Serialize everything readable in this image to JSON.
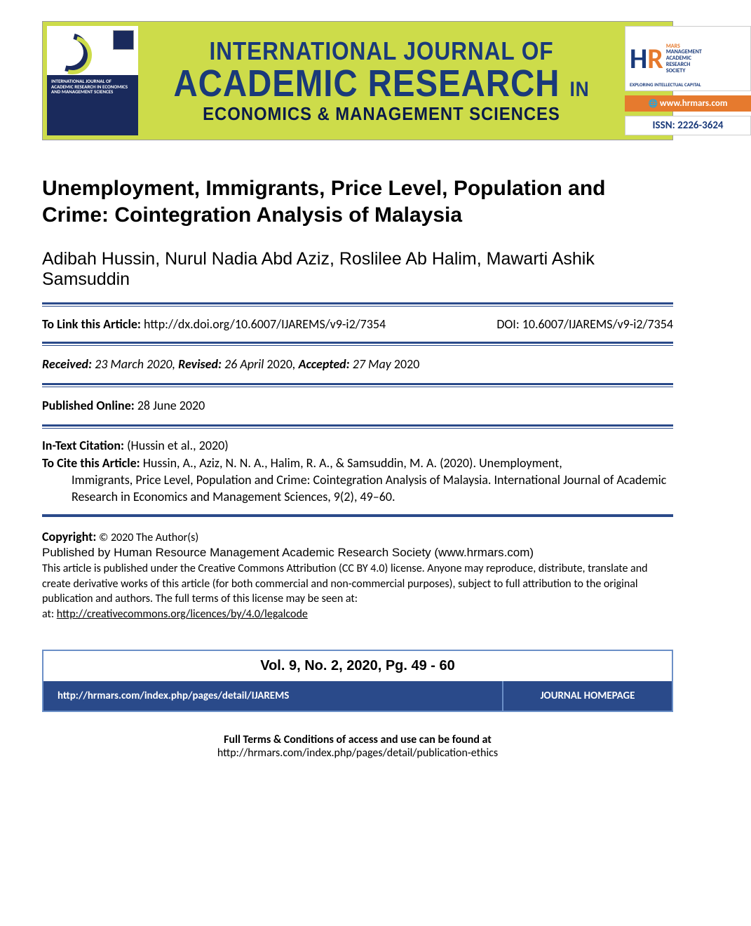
{
  "banner": {
    "journal_line1": "INTERNATIONAL JOURNAL OF",
    "journal_line2_a": "ACADEMIC RESEARCH",
    "journal_line2_b": "IN",
    "journal_line3": "ECONOMICS & MANAGEMENT SCIENCES",
    "cover_title": "INTERNATIONAL JOURNAL OF ACADEMIC RESEARCH IN ECONOMICS AND MANAGEMENT SCIENCES",
    "logo_text_line1": "MANAGEMENT",
    "logo_text_line2": "ACADEMIC",
    "logo_text_line3": "RESEARCH",
    "logo_text_line4": "SOCIETY",
    "logo_tagline": "EXPLORING INTELLECTUAL CAPITAL",
    "url": "www.hrmars.com",
    "issn": "ISSN: 2226-3624",
    "colors": {
      "banner_bg": "#cddc4a",
      "title_color": "#1a3a7a",
      "navy": "#0a1a4a",
      "orange": "#e67a2e",
      "bar_blue": "#2a4a8a",
      "border_blue": "#6b8fc7"
    }
  },
  "article": {
    "title": "Unemployment, Immigrants, Price Level, Population and Crime: Cointegration Analysis of Malaysia",
    "authors": "Adibah Hussin, Nurul Nadia Abd Aziz, Roslilee Ab Halim, Mawarti Ashik Samsuddin"
  },
  "doi": {
    "link_label": "To Link this Article:",
    "link_url": "http://dx.doi.org/10.6007/IJAREMS/v9-i2/7354",
    "doi_label": "DOI:",
    "doi_value": "10.6007/IJAREMS/v9-i2/7354"
  },
  "dates": {
    "received_label": "Received:",
    "received_value": "23 March 2020",
    "revised_label": "Revised:",
    "revised_value": "26 April",
    "revised_year": "2020",
    "accepted_label": "Accepted:",
    "accepted_value": "27 May",
    "accepted_year": "2020",
    "published_label": "Published Online:",
    "published_value": "28 June 2020"
  },
  "citation": {
    "intext_label": "In-Text Citation:",
    "intext_value": "(Hussin et al., 2020)",
    "cite_label": "To Cite this Article:",
    "cite_text_1": "Hussin, A., Aziz, N. N. A., Halim, R. A., & Samsuddin, M. A. (2020). Unemployment,",
    "cite_text_2": "Immigrants, Price Level, Population and Crime: Cointegration Analysis of Malaysia.",
    "cite_journal": "International Journal of Academic Research in Economics and Management Sciences",
    "cite_vol": ", 9(2), 49–60."
  },
  "copyright": {
    "label": "Copyright:",
    "holder": "© 2020 The Author(s)",
    "publisher": "Published by Human Resource Management Academic Research Society (www.hrmars.com)",
    "license_text": "This article is published under the Creative Commons Attribution (CC BY 4.0) license. Anyone may reproduce, distribute, translate and create derivative works of this article (for both commercial and non-commercial purposes), subject to full attribution to the original publication and authors. The full terms of this license may be seen at:",
    "license_url": "http://creativecommons.org/licences/by/4.0/legalcode"
  },
  "volume": {
    "header": "Vol. 9, No. 2, 2020, Pg. 49 - 60",
    "url": "http://hrmars.com/index.php/pages/detail/IJAREMS",
    "homepage_label": "JOURNAL HOMEPAGE"
  },
  "terms": {
    "heading": "Full Terms & Conditions of access and use can be found at",
    "url": "http://hrmars.com/index.php/pages/detail/publication-ethics"
  }
}
